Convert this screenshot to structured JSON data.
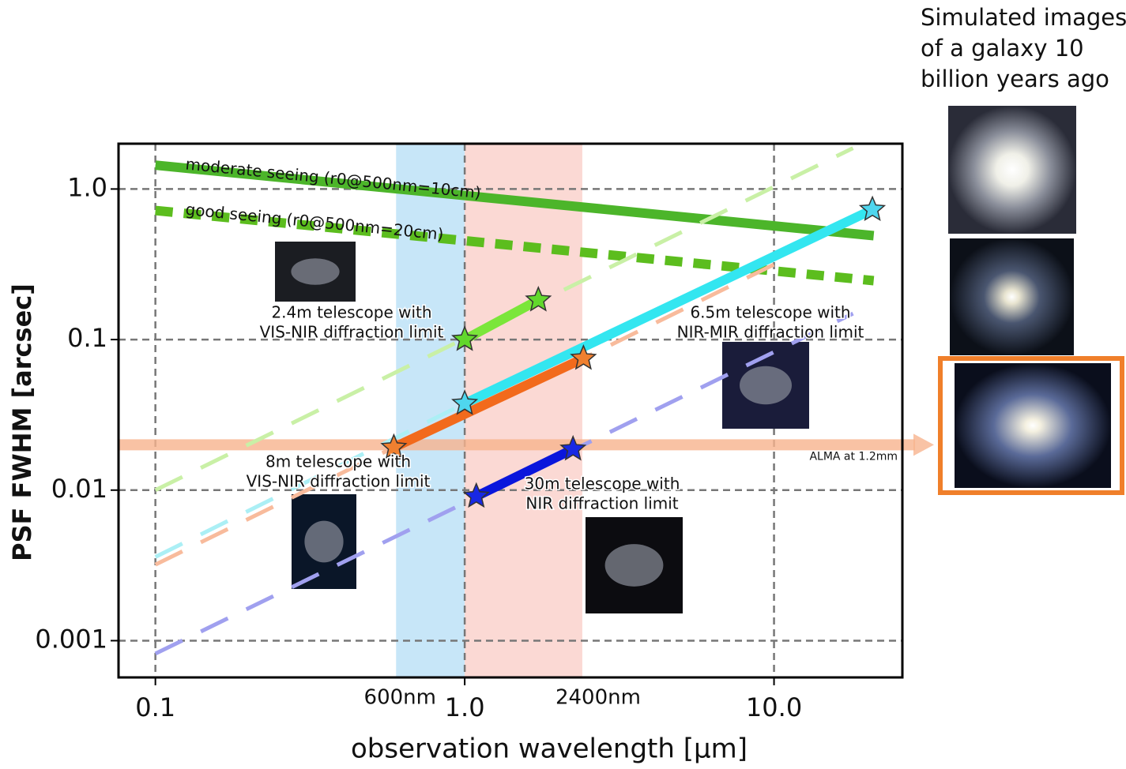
{
  "chart_data": {
    "type": "line",
    "x_label": "observation wavelength [μm]",
    "y_label": "PSF FWHM [arcsec]",
    "log_x": true,
    "log_y": true,
    "grid": true,
    "xlim": [
      0.076,
      26
    ],
    "ylim": [
      0.00057,
      2.0
    ],
    "xticks": [
      0.1,
      {
        "value": 1,
        "label": "1.0"
      },
      {
        "value": 10,
        "label": "10.0"
      }
    ],
    "yticks": [
      {
        "value": 1,
        "label": "1.0"
      },
      0.1,
      0.01,
      0.001
    ],
    "bands": [
      {
        "from": 0.6,
        "to": 1.0,
        "color": "#c7e6f8",
        "edge_label": "600nm"
      },
      {
        "from": 1.0,
        "to": 2.4,
        "color": "#fbd9d4",
        "edge_label": "2400nm"
      }
    ],
    "reference_lines": [
      {
        "value": 0.02,
        "label": "ALMA at 1.2mm",
        "color": "#f8b48e"
      }
    ],
    "series": [
      {
        "name": "moderate seeing (r0@500nm=10cm)",
        "color": "#4cb52a",
        "style": "solid",
        "x": [
          0.1,
          21
        ],
        "y": [
          1.44,
          0.49
        ]
      },
      {
        "name": "good seeing (r0@500nm=20cm)",
        "color": "#5cbd1e",
        "style": "thick-dashed",
        "x": [
          0.1,
          21
        ],
        "y": [
          0.72,
          0.246
        ]
      },
      {
        "color": "#c9f0a6",
        "style": "dashed",
        "x": [
          0.1,
          18
        ],
        "y": [
          0.01,
          1.87
        ]
      },
      {
        "color": "#abeff5",
        "style": "dashed",
        "x": [
          0.1,
          1.0
        ],
        "y": [
          0.0036,
          0.0376
        ]
      },
      {
        "color": "#f8bb9c",
        "style": "dashed",
        "x": [
          0.1,
          0.59,
          2.42,
          11.4
        ],
        "y": [
          0.0032,
          0.0192,
          0.075,
          0.36
        ]
      },
      {
        "color": "#a0a0ef",
        "style": "dashed",
        "x": [
          0.1,
          18
        ],
        "y": [
          0.00082,
          0.149
        ]
      },
      {
        "color": "#7be63a",
        "style": "solid",
        "marker": "star",
        "marker_color": "#62d82c",
        "x": [
          1.0,
          1.73
        ],
        "y": [
          0.1,
          0.183
        ]
      },
      {
        "color": "#33e6f0",
        "style": "solid",
        "marker": "star",
        "marker_color": "#4fd6ee",
        "x": [
          1.0,
          20.8
        ],
        "y": [
          0.0376,
          0.73
        ]
      },
      {
        "color": "#f26a1c",
        "style": "solid",
        "marker": "star",
        "marker_color": "#f08030",
        "x": [
          0.59,
          2.42
        ],
        "y": [
          0.0192,
          0.075
        ]
      },
      {
        "color": "#0a16dc",
        "style": "solid",
        "marker": "star",
        "marker_color": "#1828e4",
        "x": [
          1.09,
          2.24
        ],
        "y": [
          0.0091,
          0.0187
        ]
      }
    ],
    "annotations": [
      {
        "lines": [
          "2.4m telescope with",
          "VIS-NIR diffraction limit"
        ]
      },
      {
        "lines": [
          "6.5m telescope with",
          "NIR-MIR diffraction limit"
        ]
      },
      {
        "lines": [
          "8m telescope with",
          "VIS-NIR diffraction limit"
        ]
      },
      {
        "lines": [
          "30m telescope with",
          "NIR diffraction limit"
        ]
      }
    ]
  },
  "side_panel": {
    "caption": [
      "Simulated images",
      "of a galaxy 10",
      "billion years ago"
    ]
  }
}
